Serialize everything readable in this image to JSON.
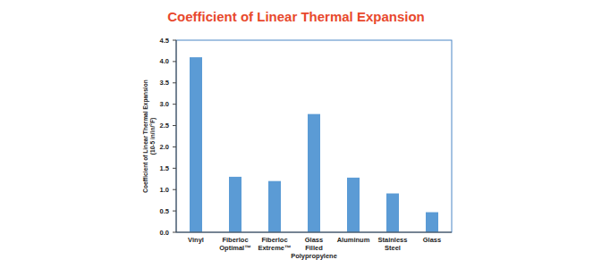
{
  "chart_data": {
    "type": "bar",
    "title": "Coefficient of Linear Thermal Expansion",
    "y_label": "Coefficient of Linear Thermal Expansion",
    "y_label_units": "(10-5 in/in/°F)",
    "categories": [
      "Vinyl",
      "Fiberloc Optimal™",
      "Fiberloc Extreme™",
      "Glass Filled Polypropylene",
      "Aluminum",
      "Stainless Steel",
      "Glass"
    ],
    "values": [
      4.1,
      1.3,
      1.2,
      2.77,
      1.28,
      0.91,
      0.47
    ],
    "color": "#5b9bd5",
    "ylim": [
      0,
      4.5
    ],
    "yticks": [
      {
        "value": 0,
        "label": "0.0"
      },
      0.5,
      {
        "value": 1,
        "label": "1.0"
      },
      1.5,
      {
        "value": 2,
        "label": "2.0"
      },
      2.5,
      {
        "value": 3,
        "label": "3.0"
      },
      3.5,
      {
        "value": 4,
        "label": "4.0"
      },
      4.5
    ],
    "grid": false
  }
}
